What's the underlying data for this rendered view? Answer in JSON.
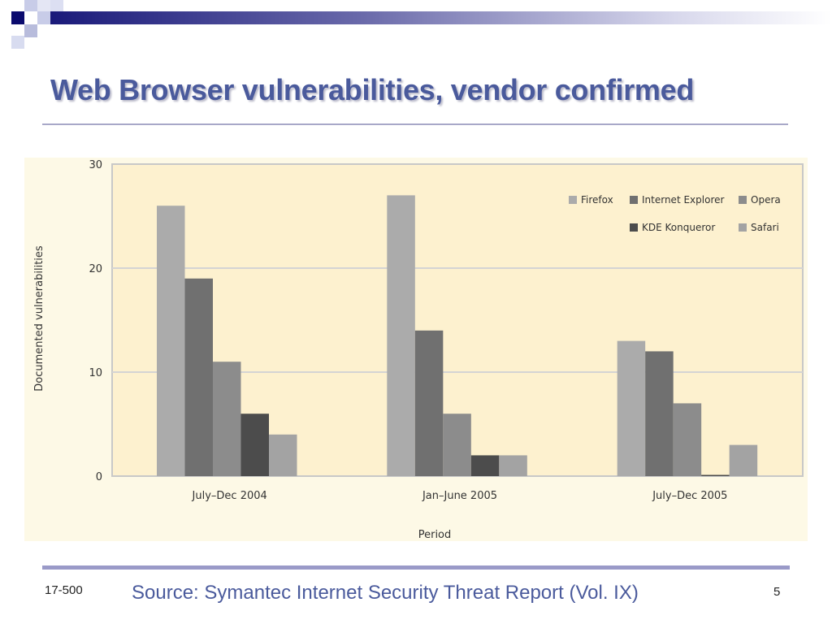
{
  "slide": {
    "title": "Web Browser vulnerabilities, vendor confirmed",
    "footer_left": "17-500",
    "source": "Source: Symantec Internet Security Threat Report (Vol. IX)",
    "page_number": "5"
  },
  "colors": {
    "title": "#4a5a9c",
    "accent_bar": "#9a9ac8",
    "plot_background": "#fdf1cf",
    "chart_background": "#fdf9e6"
  },
  "chart_data": {
    "type": "bar",
    "title": "",
    "xlabel": "Period",
    "ylabel": "Documented vulnerabilities",
    "ylim": [
      0,
      30
    ],
    "yticks": [
      0,
      10,
      20,
      30
    ],
    "grid": true,
    "legend_position": "top-right",
    "categories": [
      "July–Dec 2004",
      "Jan–June 2005",
      "July–Dec 2005"
    ],
    "series": [
      {
        "name": "Firefox",
        "color": "#ababab",
        "values": [
          26,
          27,
          13
        ]
      },
      {
        "name": "Internet Explorer",
        "color": "#707070",
        "values": [
          19,
          14,
          12
        ]
      },
      {
        "name": "Opera",
        "color": "#8c8c8c",
        "values": [
          11,
          6,
          7
        ]
      },
      {
        "name": "KDE Konqueror",
        "color": "#4c4c4c",
        "values": [
          6,
          2,
          0
        ]
      },
      {
        "name": "Safari",
        "color": "#a3a3a3",
        "values": [
          4,
          2,
          3
        ]
      }
    ]
  }
}
